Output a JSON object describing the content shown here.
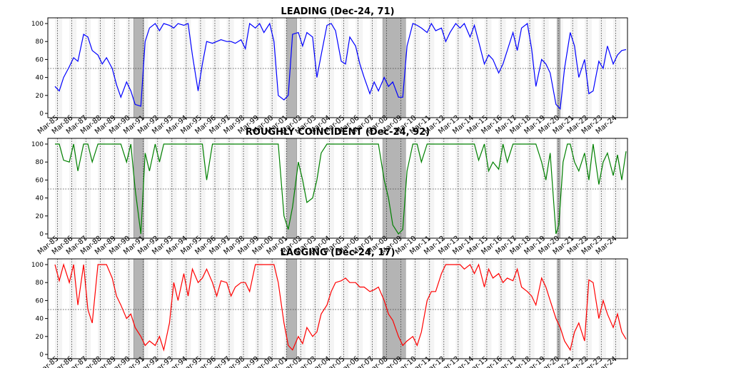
{
  "chart_data": [
    {
      "type": "line",
      "title": "LEADING (Dec-24, 71)",
      "color": "#0000ff",
      "ylim": [
        0,
        100
      ],
      "yticks": [
        0,
        20,
        40,
        60,
        80,
        100
      ],
      "reference_line": 50,
      "x": [
        1985.0,
        1985.3,
        1985.6,
        1986.0,
        1986.3,
        1986.6,
        1987.0,
        1987.3,
        1987.6,
        1988.0,
        1988.3,
        1988.6,
        1989.0,
        1989.3,
        1989.6,
        1990.0,
        1990.3,
        1990.6,
        1991.0,
        1991.3,
        1991.6,
        1992.0,
        1992.3,
        1992.6,
        1993.0,
        1993.3,
        1993.6,
        1994.0,
        1994.3,
        1994.6,
        1995.0,
        1995.3,
        1995.6,
        1996.0,
        1996.3,
        1996.6,
        1997.0,
        1997.3,
        1997.6,
        1998.0,
        1998.3,
        1998.6,
        1999.0,
        1999.3,
        1999.6,
        2000.0,
        2000.3,
        2000.6,
        2001.0,
        2001.3,
        2001.6,
        2002.0,
        2002.3,
        2002.6,
        2003.0,
        2003.3,
        2003.6,
        2004.0,
        2004.3,
        2004.6,
        2005.0,
        2005.3,
        2005.6,
        2006.0,
        2006.3,
        2006.6,
        2007.0,
        2007.3,
        2007.6,
        2008.0,
        2008.3,
        2008.6,
        2009.0,
        2009.3,
        2009.6,
        2010.0,
        2010.3,
        2010.6,
        2011.0,
        2011.3,
        2011.6,
        2012.0,
        2012.3,
        2012.6,
        2013.0,
        2013.3,
        2013.6,
        2014.0,
        2014.3,
        2014.6,
        2015.0,
        2015.3,
        2015.6,
        2016.0,
        2016.3,
        2016.6,
        2017.0,
        2017.3,
        2017.6,
        2018.0,
        2018.3,
        2018.6,
        2019.0,
        2019.3,
        2019.6,
        2020.0,
        2020.3,
        2020.6,
        2021.0,
        2021.3,
        2021.6,
        2022.0,
        2022.3,
        2022.6,
        2023.0,
        2023.3,
        2023.6,
        2024.0,
        2024.3,
        2024.6,
        2024.9
      ],
      "values": [
        30,
        25,
        40,
        52,
        62,
        58,
        88,
        85,
        70,
        65,
        55,
        62,
        50,
        32,
        18,
        35,
        25,
        10,
        8,
        80,
        95,
        100,
        92,
        100,
        98,
        95,
        100,
        98,
        100,
        65,
        25,
        55,
        80,
        78,
        80,
        82,
        80,
        80,
        78,
        82,
        72,
        100,
        95,
        100,
        90,
        100,
        80,
        20,
        15,
        20,
        88,
        90,
        75,
        90,
        85,
        40,
        65,
        98,
        100,
        92,
        58,
        55,
        85,
        75,
        55,
        40,
        22,
        35,
        25,
        40,
        30,
        35,
        18,
        18,
        75,
        100,
        98,
        95,
        90,
        100,
        92,
        95,
        80,
        90,
        100,
        95,
        100,
        85,
        98,
        80,
        55,
        65,
        60,
        45,
        55,
        70,
        90,
        70,
        95,
        100,
        72,
        30,
        60,
        55,
        45,
        10,
        5,
        50,
        90,
        75,
        40,
        60,
        22,
        25,
        58,
        50,
        75,
        55,
        65,
        70,
        71
      ]
    },
    {
      "type": "line",
      "title": "ROUGHLY COINCIDENT (Dec-24, 92)",
      "color": "#008000",
      "ylim": [
        0,
        100
      ],
      "yticks": [
        0,
        20,
        40,
        60,
        80,
        100
      ],
      "reference_line": 50,
      "x": [
        1985.0,
        1985.3,
        1985.6,
        1986.0,
        1986.3,
        1986.6,
        1987.0,
        1987.3,
        1987.6,
        1988.0,
        1988.3,
        1988.6,
        1989.0,
        1989.3,
        1989.6,
        1990.0,
        1990.3,
        1990.6,
        1991.0,
        1991.3,
        1991.6,
        1992.0,
        1992.3,
        1992.6,
        1993.0,
        1993.5,
        1994.0,
        1994.5,
        1995.0,
        1995.3,
        1995.6,
        1996.0,
        1996.5,
        1997.0,
        1998.0,
        1999.0,
        2000.0,
        2000.3,
        2000.6,
        2001.0,
        2001.3,
        2001.6,
        2002.0,
        2002.3,
        2002.6,
        2003.0,
        2003.3,
        2003.6,
        2004.0,
        2004.5,
        2005.0,
        2006.0,
        2007.0,
        2007.3,
        2007.6,
        2008.0,
        2008.3,
        2008.6,
        2009.0,
        2009.3,
        2009.6,
        2010.0,
        2010.3,
        2010.6,
        2011.0,
        2011.5,
        2012.0,
        2013.0,
        2014.0,
        2014.3,
        2014.6,
        2015.0,
        2015.3,
        2015.6,
        2016.0,
        2016.3,
        2016.6,
        2017.0,
        2017.3,
        2017.6,
        2018.0,
        2018.3,
        2018.6,
        2019.0,
        2019.3,
        2019.6,
        2020.0,
        2020.2,
        2020.5,
        2020.8,
        2021.0,
        2021.3,
        2021.6,
        2022.0,
        2022.3,
        2022.6,
        2023.0,
        2023.3,
        2023.6,
        2024.0,
        2024.3,
        2024.6,
        2024.9
      ],
      "values": [
        100,
        100,
        82,
        80,
        100,
        70,
        100,
        100,
        80,
        100,
        100,
        100,
        100,
        100,
        100,
        80,
        100,
        50,
        0,
        90,
        70,
        100,
        80,
        100,
        100,
        100,
        100,
        100,
        100,
        100,
        60,
        100,
        100,
        100,
        100,
        100,
        100,
        100,
        100,
        20,
        5,
        30,
        80,
        60,
        35,
        40,
        60,
        90,
        100,
        100,
        100,
        100,
        100,
        100,
        100,
        60,
        40,
        10,
        0,
        5,
        70,
        100,
        100,
        80,
        100,
        100,
        100,
        100,
        100,
        100,
        82,
        100,
        70,
        80,
        72,
        100,
        80,
        100,
        100,
        100,
        100,
        100,
        100,
        80,
        60,
        90,
        0,
        10,
        80,
        100,
        100,
        80,
        70,
        90,
        60,
        100,
        55,
        80,
        90,
        65,
        88,
        60,
        92
      ]
    },
    {
      "type": "line",
      "title": "LAGGING (Dec-24, 17)",
      "color": "#ff0000",
      "ylim": [
        0,
        100
      ],
      "yticks": [
        0,
        20,
        40,
        60,
        80,
        100
      ],
      "reference_line": 50,
      "x": [
        1985.0,
        1985.3,
        1985.6,
        1986.0,
        1986.3,
        1986.6,
        1987.0,
        1987.3,
        1987.6,
        1988.0,
        1988.3,
        1988.6,
        1989.0,
        1989.3,
        1989.6,
        1990.0,
        1990.3,
        1990.6,
        1991.0,
        1991.3,
        1991.6,
        1992.0,
        1992.3,
        1992.6,
        1993.0,
        1993.3,
        1993.6,
        1994.0,
        1994.3,
        1994.6,
        1995.0,
        1995.3,
        1995.6,
        1996.0,
        1996.3,
        1996.6,
        1997.0,
        1997.3,
        1997.6,
        1998.0,
        1998.3,
        1998.6,
        1999.0,
        1999.3,
        1999.6,
        2000.0,
        2000.3,
        2000.6,
        2001.0,
        2001.3,
        2001.6,
        2002.0,
        2002.3,
        2002.6,
        2003.0,
        2003.3,
        2003.6,
        2004.0,
        2004.3,
        2004.6,
        2005.0,
        2005.3,
        2005.6,
        2006.0,
        2006.3,
        2006.6,
        2007.0,
        2007.3,
        2007.6,
        2008.0,
        2008.3,
        2008.6,
        2009.0,
        2009.3,
        2009.6,
        2010.0,
        2010.3,
        2010.6,
        2011.0,
        2011.3,
        2011.6,
        2012.0,
        2012.3,
        2012.6,
        2013.0,
        2013.3,
        2013.6,
        2014.0,
        2014.3,
        2014.6,
        2015.0,
        2015.3,
        2015.6,
        2016.0,
        2016.3,
        2016.6,
        2017.0,
        2017.3,
        2017.6,
        2018.0,
        2018.3,
        2018.6,
        2019.0,
        2019.3,
        2019.6,
        2020.0,
        2020.3,
        2020.6,
        2021.0,
        2021.3,
        2021.6,
        2022.0,
        2022.3,
        2022.6,
        2023.0,
        2023.3,
        2023.6,
        2024.0,
        2024.3,
        2024.6,
        2024.9
      ],
      "values": [
        100,
        82,
        100,
        80,
        100,
        55,
        100,
        50,
        35,
        100,
        100,
        100,
        85,
        65,
        55,
        40,
        45,
        30,
        20,
        10,
        15,
        10,
        20,
        5,
        35,
        80,
        60,
        90,
        65,
        95,
        80,
        85,
        95,
        80,
        65,
        82,
        80,
        65,
        75,
        80,
        80,
        70,
        100,
        100,
        100,
        100,
        100,
        80,
        35,
        10,
        5,
        20,
        12,
        30,
        20,
        25,
        45,
        55,
        70,
        80,
        82,
        85,
        80,
        80,
        75,
        75,
        70,
        72,
        75,
        60,
        45,
        38,
        20,
        10,
        15,
        20,
        10,
        25,
        60,
        70,
        70,
        90,
        100,
        100,
        100,
        100,
        95,
        100,
        90,
        100,
        75,
        95,
        85,
        90,
        80,
        85,
        82,
        95,
        75,
        70,
        65,
        55,
        85,
        75,
        60,
        40,
        30,
        15,
        5,
        25,
        35,
        15,
        83,
        80,
        40,
        60,
        45,
        30,
        45,
        25,
        17
      ]
    }
  ],
  "x_ticks": [
    "Mar-85",
    "Mar-86",
    "Mar-87",
    "Mar-88",
    "Mar-89",
    "Mar-90",
    "Mar-91",
    "Mar-92",
    "Mar-93",
    "Mar-94",
    "Mar-95",
    "Mar-96",
    "Mar-97",
    "Mar-98",
    "Mar-99",
    "Mar-00",
    "Mar-01",
    "Mar-02",
    "Mar-03",
    "Mar-04",
    "Mar-05",
    "Mar-06",
    "Mar-07",
    "Mar-08",
    "Mar-09",
    "Mar-10",
    "Mar-11",
    "Mar-12",
    "Mar-13",
    "Mar-14",
    "Mar-15",
    "Mar-16",
    "Mar-17",
    "Mar-18",
    "Mar-19",
    "Mar-20",
    "Mar-21",
    "Mar-22",
    "Mar-23",
    "Mar-24"
  ],
  "x_tick_values": [
    1985.17,
    1986.17,
    1987.17,
    1988.17,
    1989.17,
    1990.17,
    1991.17,
    1992.17,
    1993.17,
    1994.17,
    1995.17,
    1996.17,
    1997.17,
    1998.17,
    1999.17,
    2000.17,
    2001.17,
    2002.17,
    2003.17,
    2004.17,
    2005.17,
    2006.17,
    2007.17,
    2008.17,
    2009.17,
    2010.17,
    2011.17,
    2012.17,
    2013.17,
    2014.17,
    2015.17,
    2016.17,
    2017.17,
    2018.17,
    2019.17,
    2020.17,
    2021.17,
    2022.17,
    2023.17,
    2024.17
  ],
  "x_range": [
    1984.5,
    2025.0
  ],
  "recessions": [
    [
      1990.5,
      1991.2
    ],
    [
      2001.2,
      2001.9
    ],
    [
      2007.9,
      2009.5
    ],
    [
      2020.1,
      2020.3
    ]
  ],
  "grid": "vertical dotted at each Mar tick",
  "shading": "light grey background band in each year"
}
